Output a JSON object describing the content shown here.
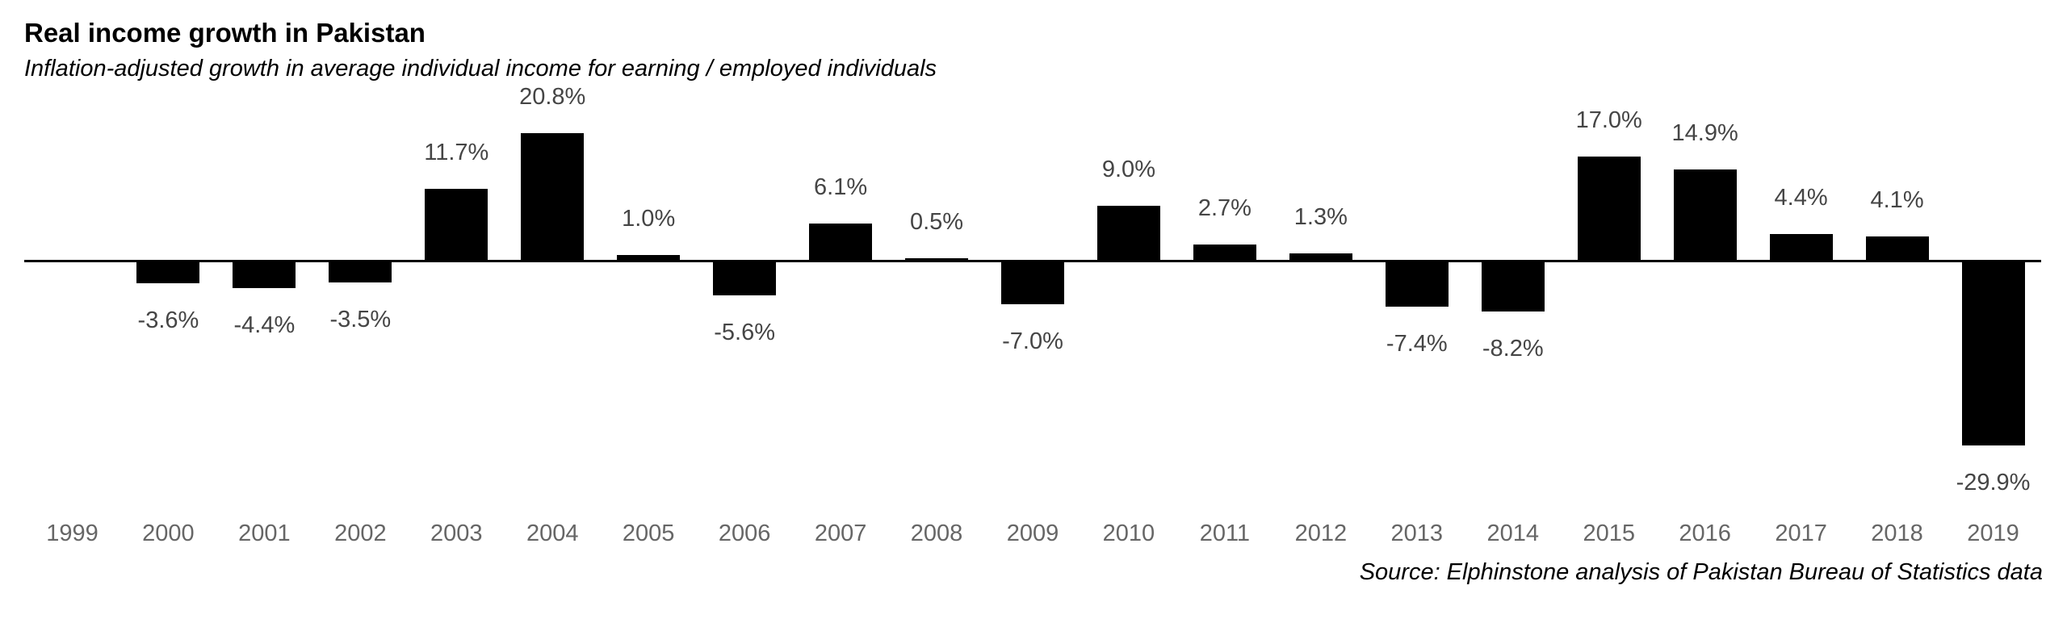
{
  "title": "Real income growth in Pakistan",
  "subtitle": "Inflation-adjusted growth in average individual income for earning / employed individuals",
  "source": "Source: Elphinstone analysis of Pakistan Bureau of Statistics data",
  "colors": {
    "bar": "#000000",
    "axis": "#000000",
    "value_label": "#454545",
    "year_label": "#666666",
    "text": "#000000",
    "background": "#ffffff"
  },
  "chart_data": {
    "type": "bar",
    "title": "Real income growth in Pakistan",
    "subtitle": "Inflation-adjusted growth in average individual income for earning / employed individuals",
    "xlabel": "",
    "ylabel": "",
    "unit": "%",
    "grid": false,
    "legend": null,
    "baseline": 0,
    "ylim": [
      -31,
      22
    ],
    "categories": [
      "1999",
      "2000",
      "2001",
      "2002",
      "2003",
      "2004",
      "2005",
      "2006",
      "2007",
      "2008",
      "2009",
      "2010",
      "2011",
      "2012",
      "2013",
      "2014",
      "2015",
      "2016",
      "2017",
      "2018",
      "2019"
    ],
    "values": [
      null,
      -3.6,
      -4.4,
      -3.5,
      11.7,
      20.8,
      1.0,
      -5.6,
      6.1,
      0.5,
      -7.0,
      9.0,
      2.7,
      1.3,
      -7.4,
      -8.2,
      17.0,
      14.9,
      4.4,
      4.1,
      -29.9
    ],
    "labels": [
      "",
      "-3.6%",
      "-4.4%",
      "-3.5%",
      "11.7%",
      "20.8%",
      "1.0%",
      "-5.6%",
      "6.1%",
      "0.5%",
      "-7.0%",
      "9.0%",
      "2.7%",
      "1.3%",
      "-7.4%",
      "-8.2%",
      "17.0%",
      "14.9%",
      "4.4%",
      "4.1%",
      "-29.9%"
    ],
    "source": "Source: Elphinstone analysis of Pakistan Bureau of Statistics data"
  }
}
